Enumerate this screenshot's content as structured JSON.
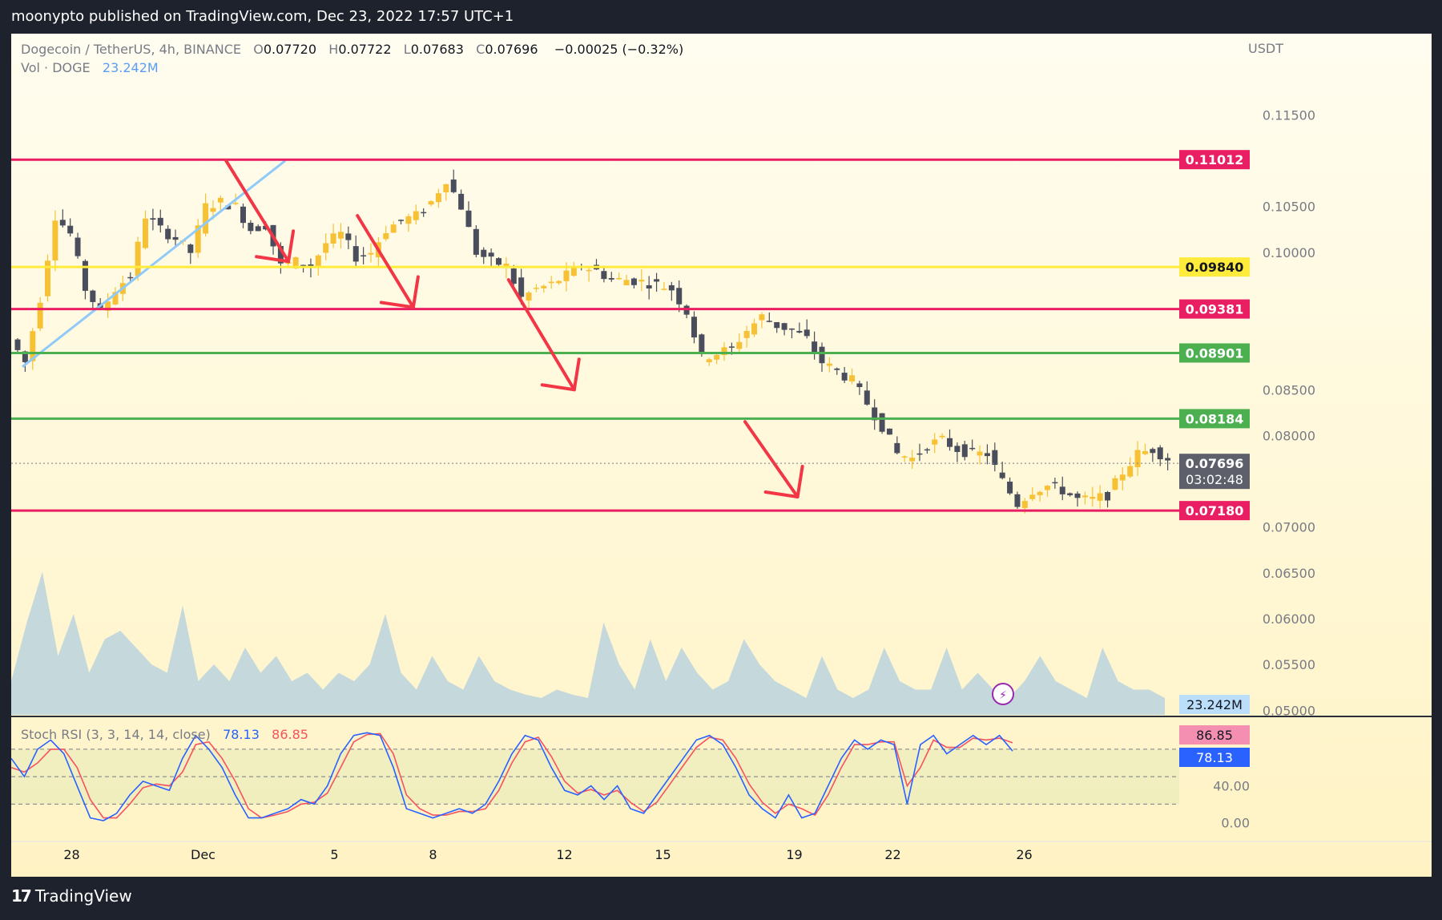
{
  "header": {
    "published": "moonypto published on TradingView.com, Dec 23, 2022 17:57 UTC+1"
  },
  "legend": {
    "symbol": "Dogecoin / TetherUS, 4h, BINANCE",
    "o_label": "O",
    "o_value": "0.07720",
    "h_label": "H",
    "h_value": "0.07722",
    "l_label": "L",
    "l_value": "0.07683",
    "c_label": "C",
    "c_value": "0.07696",
    "change": "−0.00025 (−0.32%)",
    "vol_label": "Vol · DOGE",
    "vol_value": "23.242M",
    "stoch_label": "Stoch RSI (3, 3, 14, 14, close)",
    "stoch_k": "78.13",
    "stoch_d": "86.85"
  },
  "footer": {
    "brand": "TradingView",
    "brand_mark": "17"
  },
  "colors": {
    "background": "#fffbe6",
    "bull": "#f7c135",
    "bear": "#4a4e5c",
    "resistance": "#e91e63",
    "yellow_level": "#ffeb3b",
    "support_green": "#4caf50",
    "trendline": "#90caf9",
    "arrow": "#f23645",
    "stoch_k": "#2962ff",
    "stoch_d": "#f7525f",
    "volume_area": "#b2cfe0"
  },
  "chart_data": [
    {
      "type": "candlestick",
      "pair": "DOGE/USDT",
      "timeframe": "4h",
      "y_unit": "USDT",
      "ylim": [
        0.0495,
        0.1195
      ],
      "y_ticks": [
        "0.11500",
        "0.10500",
        "0.10000",
        "0.08500",
        "0.08000",
        "0.07000",
        "0.06500",
        "0.06000",
        "0.05500",
        "0.05000"
      ],
      "x_ticks": [
        "28",
        "Dec",
        "5",
        "8",
        "12",
        "15",
        "19",
        "22",
        "26"
      ],
      "x_tick_day_index": [
        1.5,
        5.5,
        9.5,
        12.5,
        16.5,
        19.5,
        23.5,
        26.5,
        30.5
      ],
      "horizontal_levels": [
        {
          "price": 0.11012,
          "label": "0.11012",
          "color": "#e91e63"
        },
        {
          "price": 0.0984,
          "label": "0.09840",
          "color": "#ffeb3b"
        },
        {
          "price": 0.09381,
          "label": "0.09381",
          "color": "#e91e63"
        },
        {
          "price": 0.08901,
          "label": "0.08901",
          "color": "#4caf50"
        },
        {
          "price": 0.08184,
          "label": "0.08184",
          "color": "#4caf50"
        },
        {
          "price": 0.0718,
          "label": "0.07180",
          "color": "#e91e63"
        }
      ],
      "last_price": {
        "price": 0.07696,
        "label": "0.07696",
        "countdown": "03:02:48"
      },
      "ohlc_anchors": [
        0.0905,
        0.088,
        0.095,
        0.104,
        0.102,
        0.096,
        0.0935,
        0.096,
        0.0975,
        0.104,
        0.1025,
        0.1015,
        0.1,
        0.105,
        0.1055,
        0.105,
        0.1025,
        0.103,
        0.0985,
        0.099,
        0.0985,
        0.101,
        0.102,
        0.0995,
        0.1,
        0.1025,
        0.1035,
        0.104,
        0.1055,
        0.108,
        0.105,
        0.1,
        0.099,
        0.0985,
        0.095,
        0.096,
        0.0965,
        0.0975,
        0.0985,
        0.098,
        0.097,
        0.097,
        0.0968,
        0.0965,
        0.096,
        0.0935,
        0.0885,
        0.089,
        0.0895,
        0.0915,
        0.093,
        0.092,
        0.0915,
        0.0905,
        0.088,
        0.087,
        0.086,
        0.0835,
        0.081,
        0.078,
        0.0775,
        0.079,
        0.0795,
        0.0785,
        0.078,
        0.078,
        0.075,
        0.0725,
        0.074,
        0.0745,
        0.074,
        0.073,
        0.073,
        0.0735,
        0.076,
        0.078,
        0.0785,
        0.0775
      ],
      "trendline": {
        "from": {
          "day": 0.0,
          "price": 0.0875
        },
        "to": {
          "day": 8.0,
          "price": 0.11
        }
      },
      "arrows": [
        {
          "from": {
            "day": 6.2,
            "price": 0.11
          },
          "to": {
            "day": 8.1,
            "price": 0.099
          }
        },
        {
          "from": {
            "day": 10.2,
            "price": 0.104
          },
          "to": {
            "day": 11.9,
            "price": 0.094
          }
        },
        {
          "from": {
            "day": 14.8,
            "price": 0.097
          },
          "to": {
            "day": 16.8,
            "price": 0.085
          }
        },
        {
          "from": {
            "day": 22.0,
            "price": 0.0815
          },
          "to": {
            "day": 23.6,
            "price": 0.0733
          }
        }
      ]
    },
    {
      "type": "area",
      "name": "Vol · DOGE",
      "last_value": "23.242M",
      "relative_values": [
        0.2,
        0.55,
        0.85,
        0.35,
        0.6,
        0.25,
        0.45,
        0.5,
        0.4,
        0.3,
        0.25,
        0.65,
        0.2,
        0.3,
        0.2,
        0.4,
        0.25,
        0.35,
        0.2,
        0.25,
        0.15,
        0.25,
        0.2,
        0.3,
        0.6,
        0.25,
        0.15,
        0.35,
        0.2,
        0.15,
        0.35,
        0.2,
        0.15,
        0.12,
        0.1,
        0.15,
        0.12,
        0.1,
        0.55,
        0.3,
        0.15,
        0.45,
        0.2,
        0.4,
        0.25,
        0.15,
        0.2,
        0.45,
        0.3,
        0.2,
        0.15,
        0.1,
        0.35,
        0.15,
        0.1,
        0.15,
        0.4,
        0.2,
        0.15,
        0.15,
        0.4,
        0.15,
        0.25,
        0.15,
        0.1,
        0.2,
        0.35,
        0.2,
        0.15,
        0.1,
        0.4,
        0.2,
        0.15,
        0.15,
        0.1
      ]
    },
    {
      "type": "line",
      "name": "Stoch RSI (3, 3, 14, 14, close)",
      "ylim": [
        -5,
        100
      ],
      "y_ticks": [
        "40.00",
        "0.00"
      ],
      "bands": [
        80,
        50,
        20
      ],
      "last_values": {
        "k": "78.13",
        "d": "86.85"
      },
      "k_values": [
        70,
        50,
        80,
        90,
        75,
        40,
        5,
        2,
        10,
        30,
        45,
        40,
        35,
        70,
        95,
        80,
        60,
        30,
        5,
        5,
        10,
        15,
        25,
        20,
        40,
        75,
        95,
        98,
        95,
        60,
        15,
        10,
        5,
        10,
        15,
        10,
        20,
        45,
        75,
        95,
        90,
        60,
        35,
        30,
        40,
        25,
        40,
        15,
        10,
        30,
        50,
        70,
        90,
        95,
        85,
        60,
        30,
        15,
        5,
        30,
        5,
        10,
        40,
        70,
        90,
        80,
        90,
        85,
        20,
        85,
        95,
        75,
        85,
        95,
        85,
        95,
        78
      ],
      "d_values": [
        60,
        55,
        65,
        80,
        80,
        60,
        25,
        5,
        5,
        20,
        38,
        42,
        40,
        55,
        85,
        88,
        70,
        45,
        15,
        5,
        8,
        12,
        20,
        22,
        32,
        60,
        88,
        96,
        97,
        75,
        30,
        15,
        8,
        8,
        12,
        12,
        15,
        35,
        65,
        88,
        93,
        72,
        45,
        32,
        36,
        30,
        35,
        22,
        12,
        22,
        42,
        62,
        82,
        93,
        90,
        70,
        42,
        22,
        10,
        20,
        15,
        8,
        30,
        60,
        85,
        85,
        88,
        88,
        40,
        60,
        90,
        82,
        82,
        92,
        90,
        92,
        87
      ]
    }
  ]
}
